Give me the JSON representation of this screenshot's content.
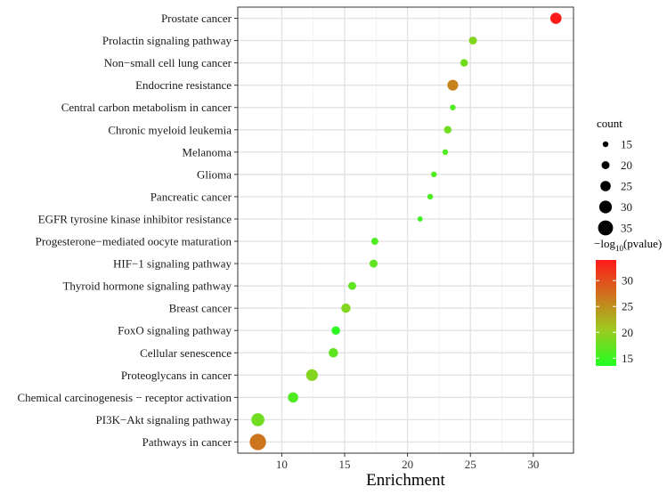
{
  "chart_data": {
    "type": "scatter",
    "title": "",
    "xlabel": "Enrichment",
    "ylabel": "",
    "xlim": [
      6.5,
      33.2
    ],
    "xticks": [
      10,
      15,
      20,
      25,
      30
    ],
    "grid": true,
    "categories": [
      "Prostate cancer",
      "Prolactin signaling pathway",
      "Non−small cell lung cancer",
      "Endocrine resistance",
      "Central carbon metabolism in cancer",
      "Chronic myeloid leukemia",
      "Melanoma",
      "Glioma",
      "Pancreatic cancer",
      "EGFR tyrosine kinase inhibitor resistance",
      "Progesterone−mediated oocyte maturation",
      "HIF−1 signaling pathway",
      "Thyroid hormone signaling pathway",
      "Breast cancer",
      "FoxO signaling pathway",
      "Cellular senescence",
      "Proteoglycans in cancer",
      "Chemical carcinogenesis − receptor activation",
      "PI3K−Akt signaling pathway",
      "Pathways in cancer"
    ],
    "points": [
      {
        "term": "Prostate cancer",
        "enrichment": 31.8,
        "count": 27,
        "neg_log10_p": 34
      },
      {
        "term": "Prolactin signaling pathway",
        "enrichment": 25.2,
        "count": 20,
        "neg_log10_p": 19
      },
      {
        "term": "Non−small cell lung cancer",
        "enrichment": 24.5,
        "count": 19,
        "neg_log10_p": 18
      },
      {
        "term": "Endocrine resistance",
        "enrichment": 23.6,
        "count": 26,
        "neg_log10_p": 26
      },
      {
        "term": "Central carbon metabolism in cancer",
        "enrichment": 23.6,
        "count": 15,
        "neg_log10_p": 16
      },
      {
        "term": "Chronic myeloid leukemia",
        "enrichment": 23.2,
        "count": 19,
        "neg_log10_p": 18
      },
      {
        "term": "Melanoma",
        "enrichment": 23.0,
        "count": 15,
        "neg_log10_p": 16
      },
      {
        "term": "Glioma",
        "enrichment": 22.1,
        "count": 15,
        "neg_log10_p": 16
      },
      {
        "term": "Pancreatic cancer",
        "enrichment": 21.8,
        "count": 15,
        "neg_log10_p": 16
      },
      {
        "term": "EGFR tyrosine kinase inhibitor resistance",
        "enrichment": 21.0,
        "count": 14,
        "neg_log10_p": 15
      },
      {
        "term": "Progesterone−mediated oocyte maturation",
        "enrichment": 17.4,
        "count": 18,
        "neg_log10_p": 16
      },
      {
        "term": "HIF−1 signaling pathway",
        "enrichment": 17.3,
        "count": 20,
        "neg_log10_p": 17
      },
      {
        "term": "Thyroid hormone signaling pathway",
        "enrichment": 15.6,
        "count": 20,
        "neg_log10_p": 17
      },
      {
        "term": "Breast cancer",
        "enrichment": 15.1,
        "count": 23,
        "neg_log10_p": 19
      },
      {
        "term": "FoxO signaling pathway",
        "enrichment": 14.3,
        "count": 21,
        "neg_log10_p": 14
      },
      {
        "term": "Cellular senescence",
        "enrichment": 14.1,
        "count": 23,
        "neg_log10_p": 17
      },
      {
        "term": "Proteoglycans in cancer",
        "enrichment": 12.4,
        "count": 28,
        "neg_log10_p": 19
      },
      {
        "term": "Chemical carcinogenesis − receptor activation",
        "enrichment": 10.9,
        "count": 25,
        "neg_log10_p": 16
      },
      {
        "term": "PI3K−Akt signaling pathway",
        "enrichment": 8.1,
        "count": 31,
        "neg_log10_p": 18
      },
      {
        "term": "Pathways in cancer",
        "enrichment": 8.1,
        "count": 38,
        "neg_log10_p": 27
      }
    ],
    "size_legend": {
      "title": "count",
      "values": [
        15,
        20,
        25,
        30,
        35
      ]
    },
    "color_legend": {
      "title_prefix": "−log",
      "title_sub": "10",
      "title_suffix": "(pvalue)",
      "min": 13.5,
      "max": 34,
      "ticks": [
        15,
        20,
        25,
        30
      ],
      "low_color": "#22ff22",
      "mid_color": "#a0c820",
      "high_color": "#ff1a1a"
    },
    "panel_background": "#ffffff",
    "grid_color": "#e3e3e3"
  }
}
